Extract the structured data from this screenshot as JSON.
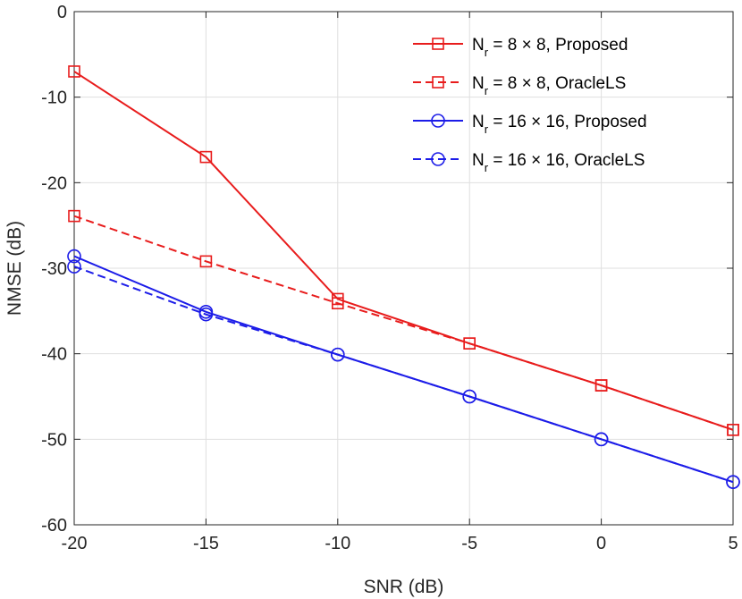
{
  "chart_data": {
    "type": "line",
    "title": "",
    "xlabel": "SNR (dB)",
    "ylabel": "NMSE (dB)",
    "x": [
      -20,
      -15,
      -10,
      -5,
      0,
      5
    ],
    "xlim": [
      -20,
      5
    ],
    "ylim": [
      -60,
      0
    ],
    "xticks": [
      -20,
      -15,
      -10,
      -5,
      0,
      5
    ],
    "yticks": [
      0,
      -10,
      -20,
      -30,
      -40,
      -50,
      -60
    ],
    "xtick_labels": [
      "-20",
      "-15",
      "-10",
      "-5",
      "0",
      "5"
    ],
    "ytick_labels": [
      "0",
      "-10",
      "-20",
      "-30",
      "-40",
      "-50",
      "-60"
    ],
    "grid": true,
    "legend_position": "top-right",
    "series": [
      {
        "name": "Nr = 8 × 8, Proposed",
        "legend_main": "N",
        "legend_sub": "r",
        "legend_rest": " = 8 × 8, Proposed",
        "color": "#e81c1c",
        "dash": "solid",
        "marker": "square",
        "values": [
          -7,
          -17,
          -33.6,
          -38.8,
          -43.7,
          -48.9
        ]
      },
      {
        "name": "Nr = 8 × 8, OracleLS",
        "legend_main": "N",
        "legend_sub": "r",
        "legend_rest": " = 8 × 8, OracleLS",
        "color": "#e81c1c",
        "dash": "dashed",
        "marker": "square",
        "values": [
          -23.9,
          -29.2,
          -34.1,
          -38.8,
          -43.7,
          -48.9
        ]
      },
      {
        "name": "Nr = 16 × 16, Proposed",
        "legend_main": "N",
        "legend_sub": "r",
        "legend_rest": " = 16 × 16, Proposed",
        "color": "#1c1ce8",
        "dash": "solid",
        "marker": "circle",
        "values": [
          -28.6,
          -35.1,
          -40.1,
          -45,
          -50,
          -55
        ]
      },
      {
        "name": "Nr = 16 × 16, OracleLS",
        "legend_main": "N",
        "legend_sub": "r",
        "legend_rest": " = 16 × 16, OracleLS",
        "color": "#1c1ce8",
        "dash": "dashed",
        "marker": "circle",
        "values": [
          -29.8,
          -35.4,
          -40.1,
          -45,
          -50,
          -55
        ]
      }
    ]
  }
}
